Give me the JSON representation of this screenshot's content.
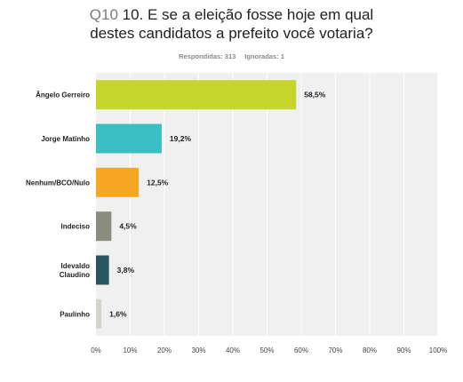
{
  "header": {
    "question_number": "Q10",
    "title_line1": "10. E se a eleição fosse hoje em qual",
    "title_line2": "destes candidatos a prefeito você votaria?",
    "respondidas": "Respondidas: 313",
    "ignoradas": "Ignoradas: 1"
  },
  "chart_data": {
    "type": "bar",
    "orientation": "horizontal",
    "categories": [
      [
        "Ângelo Gerreiro"
      ],
      [
        "Jorge Matinho"
      ],
      [
        "Nenhum/BCO/Nulo"
      ],
      [
        "Indeciso"
      ],
      [
        "Idevaldo",
        "Claudino"
      ],
      [
        "Paulinho"
      ]
    ],
    "values": [
      58.5,
      19.2,
      12.5,
      4.5,
      3.8,
      1.6
    ],
    "value_labels": [
      "58,5%",
      "19,2%",
      "12,5%",
      "4,5%",
      "3,8%",
      "1,6%"
    ],
    "colors": [
      "#c5d52b",
      "#3bbfc3",
      "#f5a623",
      "#8c8c7e",
      "#2a5563",
      "#d6d3c9"
    ],
    "xlim": [
      0,
      100
    ],
    "x_ticks": [
      "0%",
      "10%",
      "20%",
      "30%",
      "40%",
      "50%",
      "60%",
      "70%",
      "80%",
      "90%",
      "100%"
    ],
    "grid": true,
    "plot_background": "#f0f0f0",
    "gridline_color": "#ffffff"
  }
}
